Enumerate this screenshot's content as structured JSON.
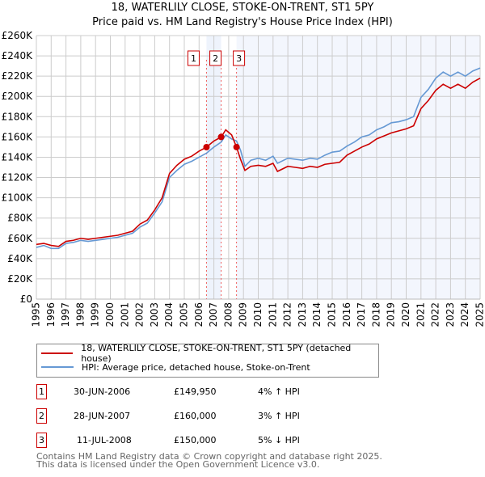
{
  "chart_data": {
    "type": "line",
    "title": "18, WATERLILY CLOSE, STOKE-ON-TRENT, ST1 5PY",
    "subtitle": "Price paid vs. HM Land Registry's House Price Index (HPI)",
    "ylim": [
      0,
      260000
    ],
    "xlim": [
      1995,
      2025
    ],
    "yticks": [
      0,
      20000,
      40000,
      60000,
      80000,
      100000,
      120000,
      140000,
      160000,
      180000,
      200000,
      220000,
      240000,
      260000
    ],
    "ytick_labels": [
      "£0",
      "£20K",
      "£40K",
      "£60K",
      "£80K",
      "£100K",
      "£120K",
      "£140K",
      "£160K",
      "£180K",
      "£200K",
      "£220K",
      "£240K",
      "£260K"
    ],
    "xticks": [
      1995,
      1996,
      1997,
      1998,
      1999,
      2000,
      2001,
      2002,
      2003,
      2004,
      2005,
      2006,
      2007,
      2008,
      2009,
      2010,
      2011,
      2012,
      2013,
      2014,
      2015,
      2016,
      2017,
      2018,
      2019,
      2020,
      2021,
      2022,
      2023,
      2024,
      2025
    ],
    "grid": true,
    "series": [
      {
        "name": "18, WATERLILY CLOSE, STOKE-ON-TRENT, ST1 5PY (detached house)",
        "color": "#cc0000",
        "x": [
          1995,
          1995.5,
          1996,
          1996.5,
          1997,
          1997.5,
          1998,
          1998.5,
          1999,
          1999.5,
          2000,
          2000.5,
          2001,
          2001.5,
          2002,
          2002.5,
          2003,
          2003.5,
          2004,
          2004.5,
          2005,
          2005.5,
          2006,
          2006.5,
          2007,
          2007.5,
          2007.8,
          2008.2,
          2008.53,
          2008.8,
          2009.1,
          2009.5,
          2010,
          2010.5,
          2011,
          2011.3,
          2012,
          2012.5,
          2013,
          2013.5,
          2014,
          2014.5,
          2015,
          2015.5,
          2016,
          2016.5,
          2017,
          2017.5,
          2018,
          2018.5,
          2019,
          2019.5,
          2020,
          2020.5,
          2021,
          2021.5,
          2022,
          2022.5,
          2023,
          2023.5,
          2024,
          2024.5,
          2025
        ],
        "y": [
          54000,
          55000,
          53000,
          52000,
          57000,
          58000,
          60000,
          59000,
          60000,
          61000,
          62000,
          63000,
          65000,
          67000,
          74000,
          78000,
          88000,
          100000,
          124000,
          132000,
          138000,
          141000,
          146000,
          149950,
          156000,
          160000,
          167000,
          162000,
          150000,
          138000,
          127000,
          131000,
          132000,
          131000,
          134000,
          126000,
          131000,
          130000,
          129000,
          131000,
          130000,
          133000,
          134000,
          135000,
          142000,
          146000,
          150000,
          153000,
          158000,
          161000,
          164000,
          166000,
          168000,
          171000,
          188000,
          196000,
          206000,
          212000,
          208000,
          212000,
          208000,
          214000,
          218000
        ]
      },
      {
        "name": "HPI: Average price, detached house, Stoke-on-Trent",
        "color": "#6699d4",
        "x": [
          1995,
          1995.5,
          1996,
          1996.5,
          1997,
          1997.5,
          1998,
          1998.5,
          1999,
          1999.5,
          2000,
          2000.5,
          2001,
          2001.5,
          2002,
          2002.5,
          2003,
          2003.5,
          2004,
          2004.5,
          2005,
          2005.5,
          2006,
          2006.5,
          2007,
          2007.5,
          2007.8,
          2008.2,
          2008.53,
          2008.8,
          2009.1,
          2009.5,
          2010,
          2010.5,
          2011,
          2011.3,
          2012,
          2012.5,
          2013,
          2013.5,
          2014,
          2014.5,
          2015,
          2015.5,
          2016,
          2016.5,
          2017,
          2017.5,
          2018,
          2018.5,
          2019,
          2019.5,
          2020,
          2020.5,
          2021,
          2021.5,
          2022,
          2022.5,
          2023,
          2023.5,
          2024,
          2024.5,
          2025
        ],
        "y": [
          51000,
          53000,
          50000,
          50000,
          55000,
          56000,
          58000,
          57000,
          58000,
          59000,
          60000,
          61000,
          63000,
          65000,
          71000,
          75000,
          85000,
          96000,
          120000,
          127000,
          133000,
          136000,
          140000,
          144000,
          150000,
          155000,
          162000,
          158000,
          156000,
          147000,
          131000,
          137000,
          139000,
          137000,
          141000,
          134000,
          139000,
          138000,
          137000,
          139000,
          138000,
          142000,
          145000,
          146000,
          151000,
          155000,
          160000,
          162000,
          167000,
          170000,
          174000,
          175000,
          177000,
          180000,
          199000,
          207000,
          218000,
          224000,
          220000,
          224000,
          220000,
          225000,
          228000
        ]
      }
    ],
    "sales": [
      {
        "label": "1",
        "x": 2006.5,
        "y": 149950
      },
      {
        "label": "2",
        "x": 2007.49,
        "y": 160000
      },
      {
        "label": "3",
        "x": 2008.53,
        "y": 150000
      }
    ]
  },
  "legend": {
    "red": "18, WATERLILY CLOSE, STOKE-ON-TRENT, ST1 5PY (detached house)",
    "blue": "HPI: Average price, detached house, Stoke-on-Trent"
  },
  "table": [
    {
      "num": "1",
      "date": "30-JUN-2006",
      "price": "£149,950",
      "hpi": "4% ↑ HPI"
    },
    {
      "num": "2",
      "date": "28-JUN-2007",
      "price": "£160,000",
      "hpi": "3% ↑ HPI"
    },
    {
      "num": "3",
      "date": "11-JUL-2008",
      "price": "£150,000",
      "hpi": "5% ↓ HPI"
    }
  ],
  "footer": {
    "line1": "Contains HM Land Registry data © Crown copyright and database right 2025.",
    "line2": "This data is licensed under the Open Government Licence v3.0."
  }
}
